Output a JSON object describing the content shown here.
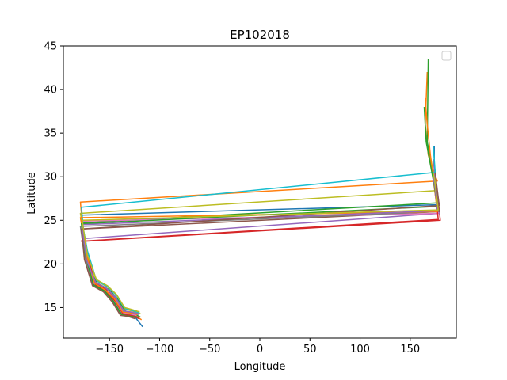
{
  "chart_data": {
    "type": "line",
    "title": "EP102018",
    "xlabel": "Longitude",
    "ylabel": "Latitude",
    "xlim": [
      -196,
      196
    ],
    "ylim": [
      11.5,
      45
    ],
    "xticks": [
      -150,
      -100,
      -50,
      0,
      50,
      100,
      150
    ],
    "yticks": [
      15,
      20,
      25,
      30,
      35,
      40,
      45
    ],
    "grid": false,
    "legend": {
      "placement": "top-right",
      "entries": []
    },
    "colors": [
      "#1f77b4",
      "#ff7f0e",
      "#2ca02c",
      "#d62728",
      "#9467bd",
      "#8c564b",
      "#e377c2",
      "#7f7f7f",
      "#bcbd22",
      "#17becf"
    ],
    "series": [
      {
        "color": "#1f77b4",
        "points": [
          [
            -117,
            12.8
          ],
          [
            -125,
            14.0
          ],
          [
            -132,
            14.2
          ],
          [
            -140,
            15.5
          ],
          [
            -148,
            16.8
          ],
          [
            -160,
            17.3
          ],
          [
            -168,
            18.2
          ],
          [
            -172,
            21.0
          ],
          [
            -176,
            23.5
          ],
          [
            -178,
            25.6
          ],
          [
            179,
            26.8
          ],
          [
            176,
            28.5
          ],
          [
            174,
            30.5
          ],
          [
            174,
            33.5
          ]
        ]
      },
      {
        "color": "#ff7f0e",
        "points": [
          [
            -118,
            13.6
          ],
          [
            -126,
            14.2
          ],
          [
            -133,
            14.3
          ],
          [
            -141,
            15.8
          ],
          [
            -150,
            16.9
          ],
          [
            -161,
            17.6
          ],
          [
            -170,
            19.0
          ],
          [
            -173,
            22.0
          ],
          [
            -177,
            24.5
          ],
          [
            -179,
            27.1
          ],
          [
            177,
            29.5
          ],
          [
            172,
            31.0
          ],
          [
            168,
            32.5
          ],
          [
            165,
            36.0
          ],
          [
            167,
            42.0
          ]
        ]
      },
      {
        "color": "#2ca02c",
        "points": [
          [
            -119,
            13.9
          ],
          [
            -127,
            14.4
          ],
          [
            -134,
            14.6
          ],
          [
            -142,
            16.0
          ],
          [
            -151,
            17.1
          ],
          [
            -162,
            17.8
          ],
          [
            -171,
            19.5
          ],
          [
            -174,
            22.8
          ],
          [
            -178,
            24.7
          ],
          [
            177,
            27.0
          ],
          [
            175,
            29.0
          ],
          [
            172,
            31.0
          ],
          [
            167,
            34.0
          ],
          [
            168,
            43.5
          ]
        ]
      },
      {
        "color": "#d62728",
        "points": [
          [
            -120,
            13.7
          ],
          [
            -128,
            14.1
          ],
          [
            -135,
            14.4
          ],
          [
            -143,
            15.9
          ],
          [
            -152,
            17.0
          ],
          [
            -163,
            17.7
          ],
          [
            -171,
            19.8
          ],
          [
            -175,
            22.6
          ],
          [
            180,
            25.0
          ],
          [
            178,
            27.3
          ],
          [
            176,
            29.0
          ],
          [
            174,
            31.5
          ]
        ]
      },
      {
        "color": "#9467bd",
        "points": [
          [
            -121,
            14.2
          ],
          [
            -129,
            14.5
          ],
          [
            -136,
            14.6
          ],
          [
            -144,
            16.2
          ],
          [
            -153,
            17.2
          ],
          [
            -164,
            17.9
          ],
          [
            -172,
            20.2
          ],
          [
            -176,
            22.9
          ],
          [
            179,
            25.8
          ],
          [
            177,
            27.8
          ],
          [
            175,
            29.8
          ],
          [
            173,
            32.0
          ]
        ]
      },
      {
        "color": "#8c564b",
        "points": [
          [
            -122,
            13.8
          ],
          [
            -130,
            14.0
          ],
          [
            -137,
            14.1
          ],
          [
            -145,
            15.6
          ],
          [
            -154,
            16.8
          ],
          [
            -165,
            17.5
          ],
          [
            -173,
            20.5
          ],
          [
            -177,
            24.0
          ],
          [
            179,
            26.0
          ],
          [
            176,
            28.0
          ],
          [
            174,
            30.0
          ]
        ]
      },
      {
        "color": "#e377c2",
        "points": [
          [
            -123,
            14.1
          ],
          [
            -131,
            14.3
          ],
          [
            -138,
            14.5
          ],
          [
            -146,
            16.0
          ],
          [
            -155,
            17.0
          ],
          [
            -166,
            17.8
          ],
          [
            -174,
            21.5
          ],
          [
            -178,
            24.9
          ],
          [
            178,
            25.8
          ],
          [
            176,
            27.6
          ],
          [
            174,
            29.6
          ]
        ]
      },
      {
        "color": "#7f7f7f",
        "points": [
          [
            -124,
            14.0
          ],
          [
            -132,
            14.2
          ],
          [
            -139,
            14.3
          ],
          [
            -147,
            15.8
          ],
          [
            -156,
            16.9
          ],
          [
            -167,
            17.6
          ],
          [
            -175,
            21.0
          ],
          [
            -179,
            24.3
          ],
          [
            178,
            26.0
          ],
          [
            175,
            28.0
          ],
          [
            173,
            30.0
          ]
        ]
      },
      {
        "color": "#bcbd22",
        "points": [
          [
            -119,
            14.3
          ],
          [
            -127,
            14.6
          ],
          [
            -134,
            14.8
          ],
          [
            -142,
            16.3
          ],
          [
            -151,
            17.3
          ],
          [
            -162,
            18.0
          ],
          [
            -171,
            20.0
          ],
          [
            -175,
            23.0
          ],
          [
            -179,
            25.8
          ],
          [
            176,
            28.4
          ],
          [
            173,
            30.5
          ],
          [
            170,
            32.5
          ]
        ]
      },
      {
        "color": "#17becf",
        "points": [
          [
            -120,
            14.4
          ],
          [
            -128,
            14.7
          ],
          [
            -135,
            14.9
          ],
          [
            -143,
            16.4
          ],
          [
            -152,
            17.4
          ],
          [
            -163,
            18.1
          ],
          [
            -172,
            21.5
          ],
          [
            -176,
            24.0
          ],
          [
            -178,
            26.5
          ],
          [
            175,
            30.5
          ],
          [
            173,
            33.5
          ]
        ]
      },
      {
        "color": "#d62728",
        "points": [
          [
            -121,
            13.9
          ],
          [
            -129,
            14.1
          ],
          [
            -136,
            14.2
          ],
          [
            -144,
            15.7
          ],
          [
            -153,
            16.8
          ],
          [
            -164,
            17.6
          ],
          [
            -172,
            21.0
          ],
          [
            -176,
            23.0
          ],
          [
            -178,
            22.6
          ],
          [
            178,
            25.1
          ],
          [
            176,
            27.4
          ],
          [
            174,
            29.4
          ]
        ]
      },
      {
        "color": "#ff7f0e",
        "points": [
          [
            -122,
            14.2
          ],
          [
            -130,
            14.4
          ],
          [
            -137,
            14.5
          ],
          [
            -145,
            16.0
          ],
          [
            -154,
            17.0
          ],
          [
            -165,
            17.8
          ],
          [
            -173,
            21.0
          ],
          [
            -177,
            24.0
          ],
          [
            -179,
            25.3
          ],
          [
            177,
            26.0
          ],
          [
            175,
            28.0
          ],
          [
            172,
            30.5
          ],
          [
            167,
            36.0
          ],
          [
            165,
            39.0
          ]
        ]
      },
      {
        "color": "#2ca02c",
        "points": [
          [
            -123,
            13.9
          ],
          [
            -131,
            14.0
          ],
          [
            -138,
            14.2
          ],
          [
            -146,
            15.7
          ],
          [
            -155,
            16.9
          ],
          [
            -166,
            17.6
          ],
          [
            -174,
            21.0
          ],
          [
            -178,
            24.6
          ],
          [
            177,
            26.6
          ],
          [
            174,
            29.0
          ],
          [
            170,
            31.5
          ],
          [
            166,
            34.0
          ],
          [
            164,
            38.0
          ]
        ]
      },
      {
        "color": "#9467bd",
        "points": [
          [
            -121,
            14.3
          ],
          [
            -129,
            14.5
          ],
          [
            -136,
            14.6
          ],
          [
            -144,
            16.1
          ],
          [
            -153,
            17.2
          ],
          [
            -164,
            17.9
          ],
          [
            -173,
            20.5
          ],
          [
            -176,
            23.0
          ],
          [
            -177,
            24.5
          ],
          [
            177,
            26.1
          ],
          [
            175,
            28.5
          ],
          [
            173,
            30.0
          ]
        ]
      },
      {
        "color": "#8c564b",
        "points": [
          [
            -124,
            13.7
          ],
          [
            -132,
            14.0
          ],
          [
            -139,
            14.1
          ],
          [
            -147,
            15.6
          ],
          [
            -156,
            16.8
          ],
          [
            -167,
            17.5
          ],
          [
            -175,
            20.5
          ],
          [
            -178,
            24.0
          ],
          [
            179,
            26.7
          ],
          [
            177,
            28.5
          ],
          [
            175,
            30.5
          ]
        ]
      },
      {
        "color": "#bcbd22",
        "points": [
          [
            -120,
            14.5
          ],
          [
            -128,
            14.8
          ],
          [
            -135,
            15.0
          ],
          [
            -143,
            16.5
          ],
          [
            -152,
            17.5
          ],
          [
            -163,
            18.2
          ],
          [
            -172,
            21.0
          ],
          [
            -176,
            24.0
          ],
          [
            -177,
            25.0
          ],
          [
            178,
            26.2
          ],
          [
            176,
            28.0
          ],
          [
            174,
            30.0
          ]
        ]
      }
    ]
  }
}
